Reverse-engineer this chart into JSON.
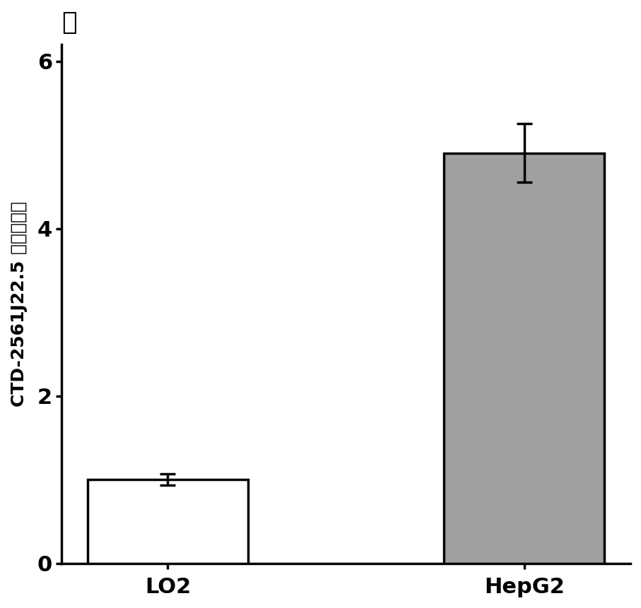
{
  "categories": [
    "LO2",
    "HepG2"
  ],
  "values": [
    1.0,
    4.9
  ],
  "errors": [
    0.07,
    0.35
  ],
  "bar_colors": [
    "#ffffff",
    "#a0a0a0"
  ],
  "bar_edgecolors": [
    "#000000",
    "#000000"
  ],
  "bar_width": 0.45,
  "ylabel": "CTD-2561J22.5 的相对表达",
  "title": "幽",
  "ylim": [
    0,
    6.2
  ],
  "yticks": [
    0,
    2,
    4,
    6
  ],
  "xlabel_fontsize": 22,
  "ylabel_fontsize": 18,
  "tick_fontsize": 22,
  "title_fontsize": 26,
  "bar_linewidth": 2.5,
  "axis_linewidth": 2.5,
  "background_color": "#ffffff",
  "error_capsize": 8,
  "error_linewidth": 2.5
}
